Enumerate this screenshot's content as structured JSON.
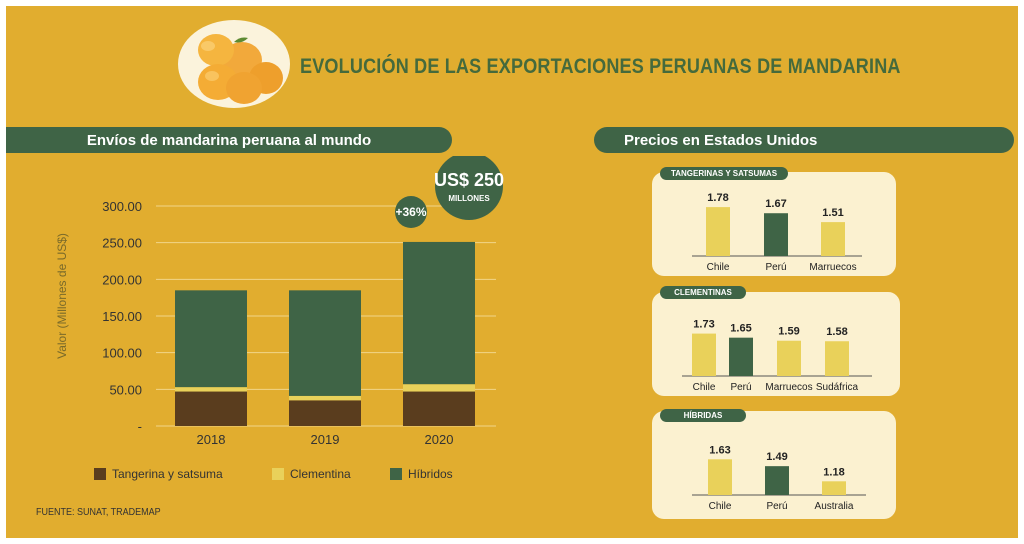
{
  "title": "EVOLUCIÓN DE LAS EXPORTACIONES PERUANAS DE MANDARINA",
  "colors": {
    "background": "#e1ad2f",
    "dark_green": "#3f6446",
    "brown": "#5a3d1e",
    "yellow": "#e9d15a",
    "panel": "#fbf1d0",
    "title_green": "#456a3c"
  },
  "left_banner": "Envíos de mandarina peruana al mundo",
  "right_banner": "Precios en Estados Unidos",
  "source": "FUENTE: SUNAT, TRADEMAP",
  "callouts": {
    "growth": "+36%",
    "total_value": "US$ 250",
    "total_unit": "MILLONES"
  },
  "chart_data": [
    {
      "type": "bar",
      "stacked": true,
      "title": "Envíos de mandarina peruana al mundo",
      "ylabel": "Valor (Millones de US$)",
      "xlabel": "",
      "ylim": [
        0,
        300
      ],
      "yticks": [
        "-",
        "50.00",
        "100.00",
        "150.00",
        "200.00",
        "250.00",
        "300.00"
      ],
      "categories": [
        "2018",
        "2019",
        "2020"
      ],
      "series": [
        {
          "name": "Tangerina y satsuma",
          "values": [
            47,
            35,
            47
          ]
        },
        {
          "name": "Clementina",
          "values": [
            6,
            6,
            10
          ]
        },
        {
          "name": "Híbridos",
          "values": [
            132,
            144,
            194
          ]
        }
      ]
    },
    {
      "type": "bar",
      "title": "TANGERINAS Y SATSUMAS",
      "categories": [
        "Chile",
        "Perú",
        "Marruecos"
      ],
      "values": [
        1.78,
        1.67,
        1.51
      ],
      "labels": [
        "1.78",
        "1.67",
        "1.51"
      ],
      "highlight": "Perú"
    },
    {
      "type": "bar",
      "title": "CLEMENTINAS",
      "categories": [
        "Chile",
        "Perú",
        "Marruecos",
        "Sudáfrica"
      ],
      "values": [
        1.73,
        1.65,
        1.59,
        1.58
      ],
      "labels": [
        "1.73",
        "1.65",
        "1.59",
        "1.58"
      ],
      "highlight": "Perú"
    },
    {
      "type": "bar",
      "title": "HÍBRIDAS",
      "categories": [
        "Chile",
        "Perú",
        "Australia"
      ],
      "values": [
        1.63,
        1.49,
        1.18
      ],
      "labels": [
        "1.63",
        "1.49",
        "1.18"
      ],
      "highlight": "Perú"
    }
  ]
}
